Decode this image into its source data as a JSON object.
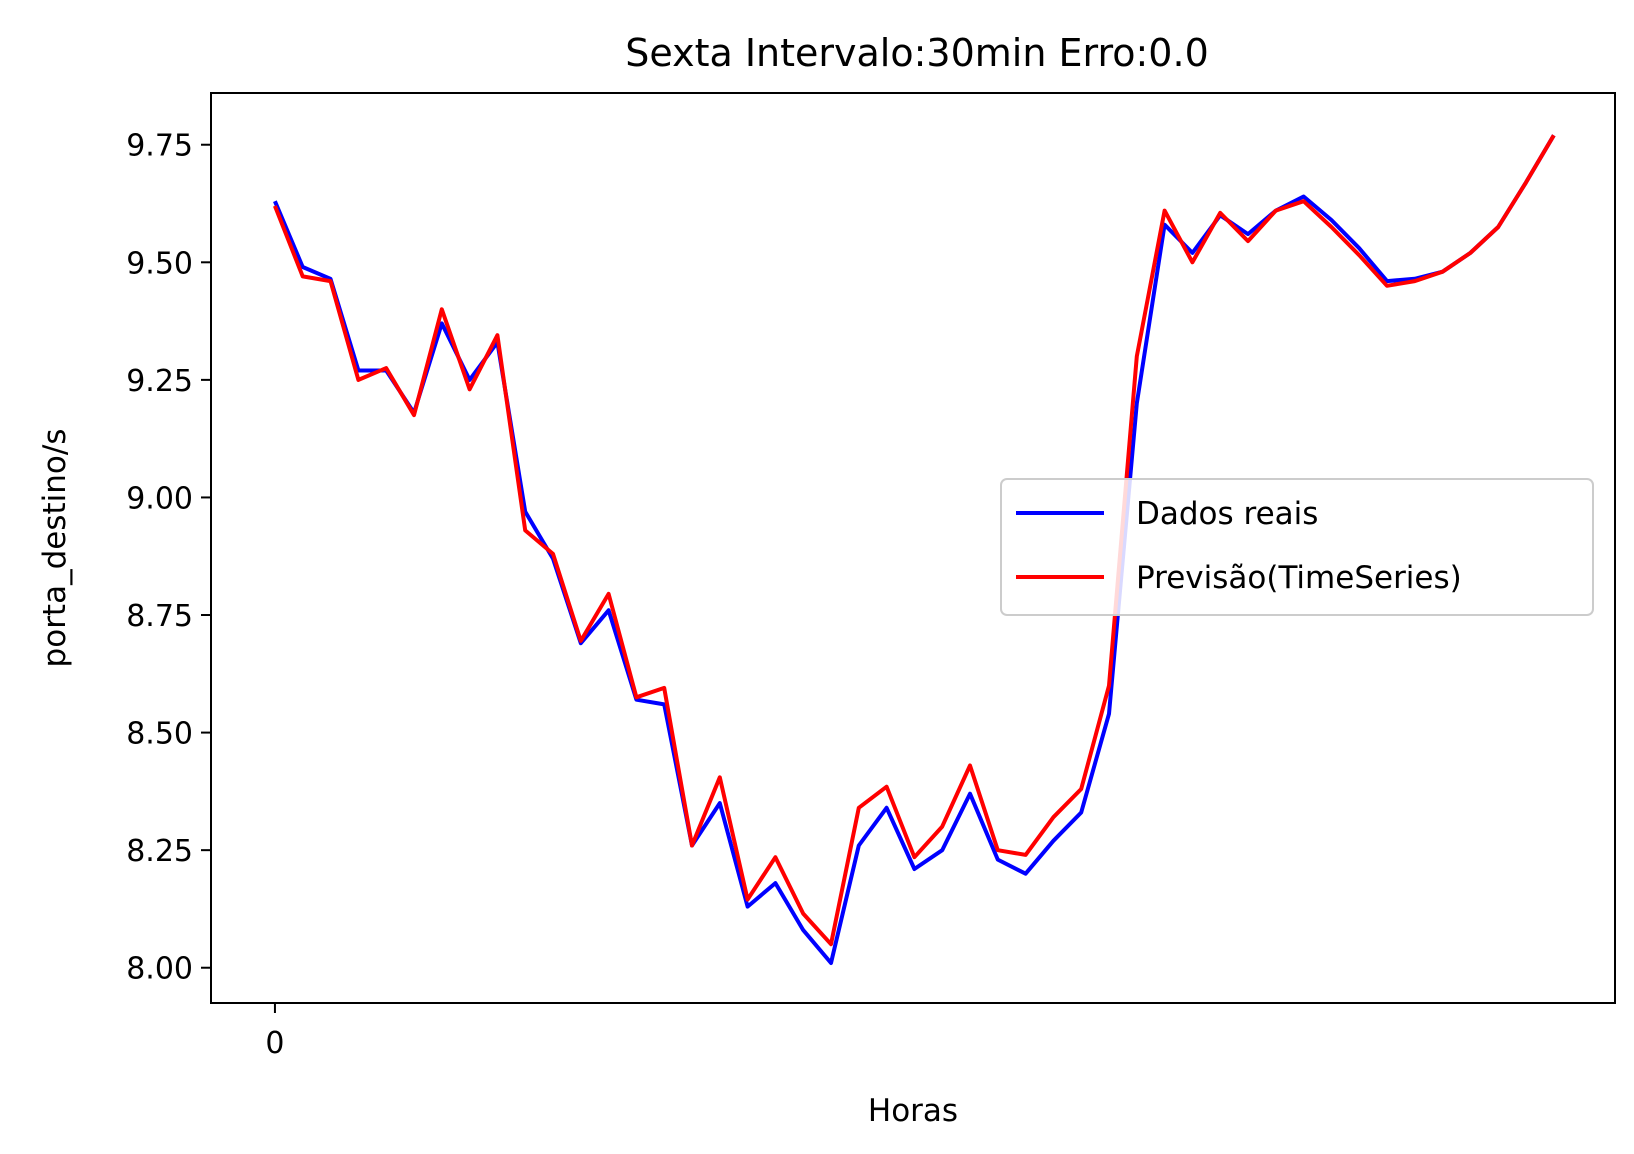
{
  "chart_data": {
    "type": "line",
    "title": "Sexta Intervalo:30min Erro:0.0",
    "xlabel": "Horas",
    "ylabel": "porta_destino/s",
    "x": [
      0,
      1,
      2,
      3,
      4,
      5,
      6,
      7,
      8,
      9,
      10,
      11,
      12,
      13,
      14,
      15,
      16,
      17,
      18,
      19,
      20,
      21,
      22,
      23,
      24,
      25,
      26,
      27,
      28,
      29,
      30,
      31,
      32,
      33,
      34,
      35,
      36,
      37,
      38,
      39,
      40,
      41,
      42,
      43,
      44,
      45,
      46
    ],
    "xlim": [
      -2.3,
      48.2
    ],
    "ylim": [
      7.925,
      9.86
    ],
    "x_ticks": [
      {
        "value": 0,
        "label": "0"
      }
    ],
    "y_ticks": [
      {
        "value": 8.0,
        "label": "8.00"
      },
      {
        "value": 8.25,
        "label": "8.25"
      },
      {
        "value": 8.5,
        "label": "8.50"
      },
      {
        "value": 8.75,
        "label": "8.75"
      },
      {
        "value": 9.0,
        "label": "9.00"
      },
      {
        "value": 9.25,
        "label": "9.25"
      },
      {
        "value": 9.5,
        "label": "9.50"
      },
      {
        "value": 9.75,
        "label": "9.75"
      }
    ],
    "grid": false,
    "legend_position": "center-right",
    "series": [
      {
        "name": "Dados reais",
        "color": "#0000ff",
        "values": [
          9.63,
          9.49,
          9.465,
          9.27,
          9.27,
          9.18,
          9.37,
          9.25,
          9.33,
          8.97,
          8.87,
          8.69,
          8.76,
          8.57,
          8.56,
          8.26,
          8.35,
          8.13,
          8.18,
          8.08,
          8.01,
          8.26,
          8.34,
          8.21,
          8.25,
          8.37,
          8.23,
          8.2,
          8.27,
          8.33,
          8.54,
          9.2,
          9.58,
          9.52,
          9.6,
          9.56,
          9.61,
          9.64,
          9.59,
          9.53,
          9.46,
          9.465,
          9.48,
          9.52,
          9.575,
          9.67,
          9.77
        ]
      },
      {
        "name": "Previsão(TimeSeries)",
        "color": "#ff0000",
        "values": [
          9.62,
          9.47,
          9.46,
          9.25,
          9.275,
          9.175,
          9.4,
          9.23,
          9.345,
          8.93,
          8.88,
          8.695,
          8.795,
          8.575,
          8.595,
          8.26,
          8.405,
          8.145,
          8.235,
          8.115,
          8.05,
          8.34,
          8.385,
          8.235,
          8.3,
          8.43,
          8.25,
          8.24,
          8.32,
          8.38,
          8.6,
          9.3,
          9.61,
          9.5,
          9.605,
          9.545,
          9.61,
          9.63,
          9.575,
          9.515,
          9.45,
          9.46,
          9.48,
          9.52,
          9.575,
          9.67,
          9.77
        ]
      }
    ]
  }
}
